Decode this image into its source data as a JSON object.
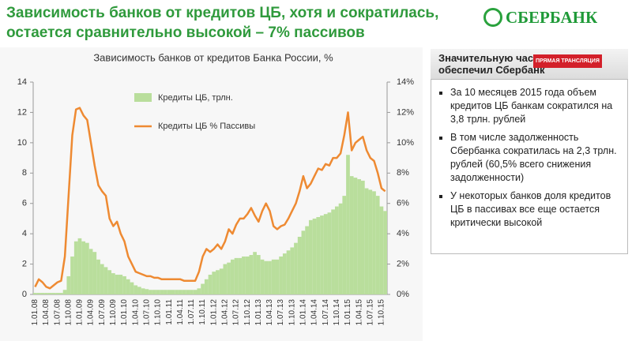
{
  "header": {
    "title_lines": [
      "Зависимость банков от кредитов ЦБ, хотя и сократилась,",
      "остается сравнительно высокой – 7% пассивов"
    ],
    "logo": "СБЕРБАНК"
  },
  "chart_data": {
    "type": "bar-line",
    "title": "Зависимость банков от кредитов Банка России, %",
    "categories": [
      "1.01.08",
      null,
      null,
      "1.04.08",
      null,
      null,
      "1.07.08",
      null,
      null,
      "1.10.08",
      null,
      null,
      "1.01.09",
      null,
      null,
      "1.04.09",
      null,
      null,
      "1.07.09",
      null,
      null,
      "1.10.09",
      null,
      null,
      "1.01.10",
      null,
      null,
      "1.04.10",
      null,
      null,
      "1.07.10",
      null,
      null,
      "1.10.10",
      null,
      null,
      "1.01.11",
      null,
      null,
      "1.04.11",
      null,
      null,
      "1.07.11",
      null,
      null,
      "1.10.11",
      null,
      null,
      "1.01.12",
      null,
      null,
      "1.04.12",
      null,
      null,
      "1.07.12",
      null,
      null,
      "1.10.12",
      null,
      null,
      "1.01.13",
      null,
      null,
      "1.04.13",
      null,
      null,
      "1.07.13",
      null,
      null,
      "1.10.13",
      null,
      null,
      "1.01.14",
      null,
      null,
      "1.04.14",
      null,
      null,
      "1.07.14",
      null,
      null,
      "1.10.14",
      null,
      null,
      "1.01.15",
      null,
      null,
      "1.04.15",
      null,
      null,
      "1.07.15",
      null,
      null,
      "1.10.15",
      null
    ],
    "series": [
      {
        "name": "Кредиты ЦБ, трлн.",
        "color": "#b9de9c",
        "axis": "y",
        "values": [
          0.1,
          0.1,
          0.1,
          0.1,
          0.1,
          0.1,
          0.1,
          0.1,
          0.3,
          1.2,
          2.5,
          3.5,
          3.7,
          3.5,
          3.4,
          3.0,
          2.8,
          2.3,
          2.0,
          1.8,
          1.6,
          1.4,
          1.3,
          1.3,
          1.2,
          1.0,
          0.8,
          0.6,
          0.5,
          0.4,
          0.35,
          0.3,
          0.3,
          0.3,
          0.3,
          0.3,
          0.3,
          0.3,
          0.3,
          0.3,
          0.3,
          0.3,
          0.3,
          0.3,
          0.4,
          0.7,
          1.0,
          1.3,
          1.5,
          1.6,
          1.7,
          2.0,
          2.1,
          2.3,
          2.4,
          2.4,
          2.5,
          2.5,
          2.6,
          2.8,
          2.6,
          2.3,
          2.2,
          2.2,
          2.3,
          2.3,
          2.5,
          2.7,
          2.9,
          3.1,
          3.4,
          3.8,
          4.2,
          4.5,
          4.9,
          5.0,
          5.1,
          5.2,
          5.3,
          5.4,
          5.6,
          5.8,
          6.0,
          6.5,
          9.2,
          7.8,
          7.7,
          7.6,
          7.5,
          7.0,
          6.9,
          6.8,
          6.5,
          5.8,
          5.5
        ]
      },
      {
        "name": "Кредиты ЦБ % Пассивы",
        "color": "#ee8a32",
        "axis": "y2",
        "values": [
          0.5,
          1.0,
          0.8,
          0.5,
          0.4,
          0.6,
          0.8,
          0.9,
          2.5,
          6.5,
          10.5,
          12.2,
          12.3,
          11.8,
          11.5,
          10.0,
          8.5,
          7.2,
          6.8,
          6.5,
          5.0,
          4.5,
          4.8,
          4.0,
          3.5,
          2.5,
          2.0,
          1.5,
          1.4,
          1.3,
          1.2,
          1.2,
          1.1,
          1.1,
          1.0,
          1.0,
          1.0,
          1.0,
          1.0,
          1.0,
          0.9,
          0.9,
          0.9,
          0.9,
          1.5,
          2.5,
          3.0,
          2.8,
          3.0,
          3.3,
          3.0,
          3.5,
          4.3,
          4.0,
          4.6,
          5.0,
          5.0,
          5.3,
          5.7,
          5.2,
          4.8,
          5.5,
          6.0,
          5.5,
          4.5,
          4.3,
          4.5,
          4.6,
          5.0,
          5.5,
          6.0,
          6.8,
          7.8,
          7.0,
          7.3,
          7.8,
          8.3,
          8.2,
          8.6,
          8.5,
          9.0,
          9.0,
          9.3,
          10.5,
          12.0,
          9.5,
          10.0,
          10.2,
          10.4,
          9.5,
          9.0,
          8.8,
          8.0,
          7.0,
          6.8
        ]
      }
    ],
    "ylim": [
      0,
      14
    ],
    "yticks": [
      0,
      2,
      4,
      6,
      8,
      10,
      12,
      14
    ],
    "y2lim": [
      0,
      14
    ],
    "y2ticks": [
      {
        "value": 0,
        "label": "0%"
      },
      {
        "value": 2,
        "label": "2%"
      },
      {
        "value": 4,
        "label": "4%"
      },
      {
        "value": 6,
        "label": "6%"
      },
      {
        "value": 8,
        "label": "8%"
      },
      {
        "value": 10,
        "label": "10%"
      },
      {
        "value": 12,
        "label": "12%"
      },
      {
        "value": 14,
        "label": "14%"
      }
    ]
  },
  "panel": {
    "heading_lines": [
      "Значительную часть",
      "обеспечил Сбербанк"
    ],
    "badge": "ПРЯМАЯ ТРАНСЛЯЦИЯ",
    "bullets": [
      "За 10  месяцев 2015 года объем кредитов ЦБ банкам сократился на 3,8 трлн. рублей",
      "В том числе задолженность Сбербанка сократилась на 2,3 трлн. рублей (60,5% всего снижения задолженности)",
      "У некоторых банков доля кредитов ЦБ в пассивах все еще остается критически высокой"
    ]
  }
}
